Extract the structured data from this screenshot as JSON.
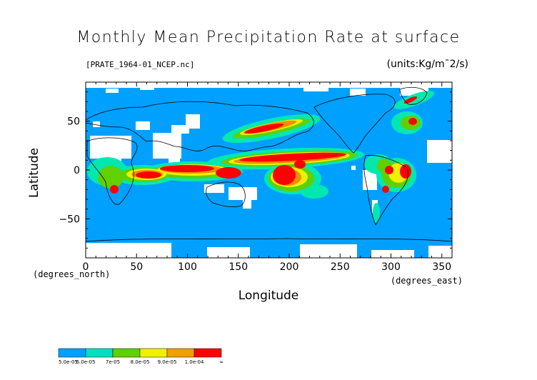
{
  "title": "Monthly Mean Precipitation Rate at surface",
  "file_label": "[PRATE_1964-01_NCEP.nc]",
  "units_label": "(units:Kg/m¯2/s)",
  "x_axis": {
    "label": "Longitude",
    "unit": "(degrees_east)",
    "ticks": [
      "0",
      "50",
      "100",
      "150",
      "200",
      "250",
      "300",
      "350"
    ]
  },
  "y_axis": {
    "label": "Latitude",
    "unit": "(degrees_north)",
    "ticks": [
      "50",
      "0",
      "−50"
    ]
  },
  "legend": {
    "labels": [
      "5.0e-05",
      "6.0e-05",
      "7e-05",
      "8.0e-05",
      "9.0e-05",
      "1.0e-04",
      "∞"
    ],
    "colors": [
      "#00a0ff",
      "#00e0c0",
      "#60d000",
      "#f0f000",
      "#f0a000",
      "#ff0000"
    ]
  },
  "colors": {
    "ocean": "#00a0ff",
    "missing": "#ffffff",
    "low": "#00e8b0",
    "mid": "#60d000",
    "high": "#f0f000",
    "vhigh": "#f09000",
    "max": "#ff0000"
  },
  "chart_data": {
    "type": "heatmap",
    "title": "Monthly Mean Precipitation Rate at surface",
    "xlabel": "Longitude",
    "ylabel": "Latitude",
    "xlim": [
      0,
      360
    ],
    "ylim": [
      -90,
      90
    ],
    "x_ticks": [
      0,
      50,
      100,
      150,
      200,
      250,
      300,
      350
    ],
    "y_ticks": [
      50,
      0,
      -50
    ],
    "units": "Kg/m¯2/s",
    "color_levels": [
      5e-05,
      6e-05,
      7e-05,
      8e-05,
      9e-05,
      0.0001
    ]
  }
}
